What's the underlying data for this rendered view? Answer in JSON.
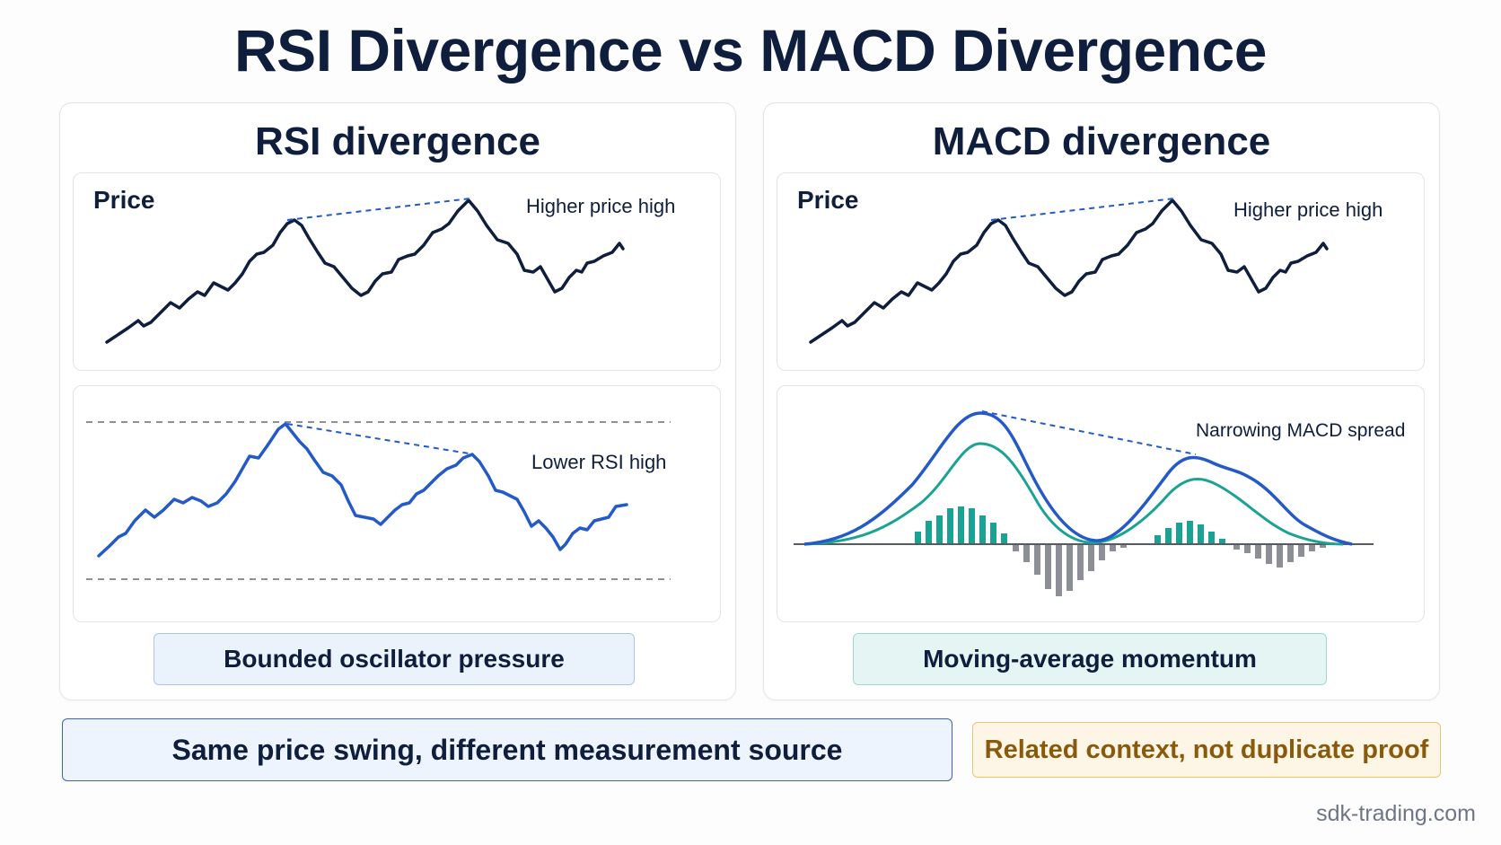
{
  "title": "RSI Divergence vs MACD Divergence",
  "left_panel": {
    "title": "RSI divergence",
    "price_label": "Price",
    "price_annotation": "Higher price high",
    "osc_annotation": "Lower RSI high",
    "pill": "Bounded oscillator pressure"
  },
  "right_panel": {
    "title": "MACD divergence",
    "price_label": "Price",
    "price_annotation": "Higher price high",
    "osc_annotation": "Narrowing MACD spread",
    "pill": "Moving-average momentum"
  },
  "bottom": {
    "main": "Same price swing, different measurement source",
    "note": "Related context, not duplicate proof"
  },
  "footer": "sdk-trading.com",
  "colors": {
    "navy": "#0f1e3d",
    "blue": "#2359c9",
    "teal": "#1aa394",
    "gray": "#8c8f96",
    "amber_text": "#8a5a0c"
  }
}
